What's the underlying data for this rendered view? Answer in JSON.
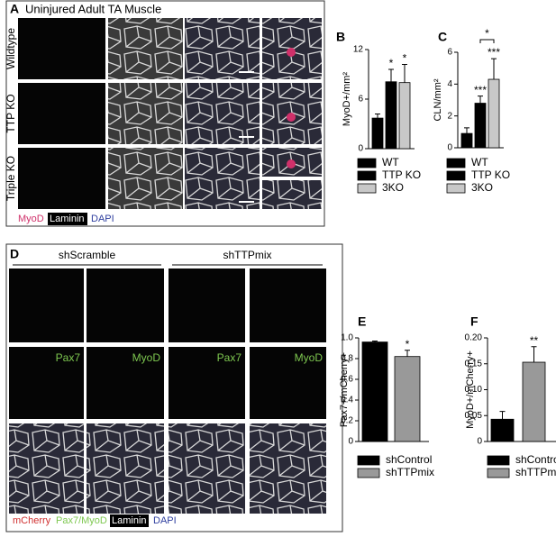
{
  "panel_a": {
    "label": "A",
    "title": "Uninjured Adult TA Muscle",
    "row_labels": [
      "Wildtype",
      "TTP KO",
      "Triple KO"
    ],
    "legend": [
      "MyoD",
      "Laminin",
      "DAPI"
    ]
  },
  "panel_d": {
    "label": "D",
    "groups": [
      "shScramble",
      "shTTPmix"
    ],
    "channel_labels": [
      "Pax7",
      "MyoD",
      "Pax7",
      "MyoD"
    ],
    "legend": [
      "mCherry",
      "Pax7/MyoD",
      "Laminin",
      "DAPI"
    ]
  },
  "chart_data": [
    {
      "type": "bar",
      "label": "B",
      "ylabel": "MyoD+/mm²",
      "categories": [
        "WT",
        "TTP KO",
        "3KO"
      ],
      "values": [
        3.7,
        8.1,
        8.0
      ],
      "errors": [
        0.5,
        1.5,
        2.2
      ],
      "colors": [
        "#000000",
        "#000000",
        "#c8c8c8"
      ],
      "significance": [
        null,
        "*",
        "*"
      ],
      "ylim": [
        0,
        12
      ],
      "yticks": [
        0,
        6,
        12
      ]
    },
    {
      "type": "bar",
      "label": "C",
      "ylabel": "CLN/mm²",
      "categories": [
        "WT",
        "TTP KO",
        "3KO"
      ],
      "values": [
        0.9,
        2.8,
        4.3
      ],
      "errors": [
        0.35,
        0.45,
        1.3
      ],
      "colors": [
        "#000000",
        "#000000",
        "#c8c8c8"
      ],
      "significance": [
        null,
        "***",
        "***"
      ],
      "bracket_label": "*",
      "ylim": [
        0,
        6
      ],
      "yticks": [
        0,
        2,
        4,
        6
      ]
    },
    {
      "type": "bar",
      "label": "E",
      "ylabel": "Pax7+/mCherry+",
      "categories": [
        "shControl",
        "shTTPmix"
      ],
      "values": [
        0.96,
        0.82
      ],
      "errors": [
        0.01,
        0.06
      ],
      "colors": [
        "#000000",
        "#999999"
      ],
      "significance": [
        null,
        "*"
      ],
      "ylim": [
        0,
        1
      ],
      "yticks": [
        0,
        0.2,
        0.4,
        0.6,
        0.8,
        {
          "value": 1,
          "label": "1.0"
        }
      ]
    },
    {
      "type": "bar",
      "label": "F",
      "ylabel": "MyoD+/mCherry+",
      "categories": [
        "shControl",
        "shTTPmix"
      ],
      "values": [
        0.043,
        0.153
      ],
      "errors": [
        0.015,
        0.03
      ],
      "colors": [
        "#000000",
        "#999999"
      ],
      "significance": [
        null,
        "**"
      ],
      "ylim": [
        0,
        0.2
      ],
      "yticks": [
        0,
        0.05,
        {
          "value": 0.1,
          "label": "0.10"
        },
        0.15,
        {
          "value": 0.2,
          "label": "0.20"
        }
      ]
    }
  ]
}
